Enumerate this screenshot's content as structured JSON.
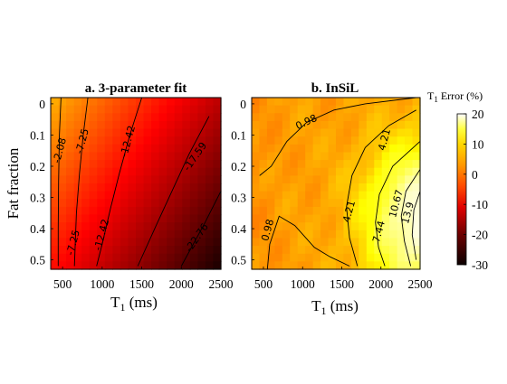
{
  "chart_data": [
    {
      "type": "heatmap",
      "title": "a. 3-parameter fit",
      "xlabel_main": "T",
      "xlabel_sub": "1",
      "xlabel_unit": " (ms)",
      "ylabel": "Fat fraction",
      "xticks": [
        500,
        1000,
        1500,
        2000,
        2500
      ],
      "yticks": [
        0,
        0.1,
        0.2,
        0.3,
        0.4,
        0.5
      ],
      "ytick_labels": [
        "0",
        "0.1",
        "0.2",
        "0.3",
        "0.4",
        "0.5"
      ],
      "xlim": [
        350,
        2500
      ],
      "ylim": [
        0.53,
        -0.02
      ],
      "y_direction": "reversed",
      "value_model": {
        "x_range": [
          400,
          2500
        ],
        "y_range": [
          0,
          0.5
        ],
        "v_at_x_min": 1,
        "slope_x": -17.5,
        "y_effect": 11
      },
      "contours": [
        {
          "level": -2.08,
          "label": "-2.08",
          "points": [
            [
              480,
              -0.02
            ],
            [
              460,
              0.1
            ],
            [
              450,
              0.25
            ],
            [
              445,
              0.4
            ],
            [
              445,
              0.52
            ]
          ],
          "label_at": [
            470,
            0.15
          ]
        },
        {
          "level": -7.25,
          "label": "-7.25",
          "points": [
            [
              820,
              -0.02
            ],
            [
              760,
              0.1
            ],
            [
              715,
              0.22
            ],
            [
              675,
              0.35
            ],
            [
              650,
              0.52
            ]
          ],
          "label_at": [
            755,
            0.12
          ]
        },
        {
          "level": -7.25,
          "label": "-7.25",
          "points": [],
          "label_at": [
            640,
            0.445
          ]
        },
        {
          "level": -12.42,
          "label": "-12.42",
          "points": [
            [
              1500,
              -0.02
            ],
            [
              1350,
              0.1
            ],
            [
              1220,
              0.22
            ],
            [
              1110,
              0.33
            ],
            [
              1000,
              0.45
            ],
            [
              930,
              0.52
            ]
          ],
          "label_at": [
            1330,
            0.12
          ]
        },
        {
          "level": -12.42,
          "label": "-12.42",
          "points": [],
          "label_at": [
            1000,
            0.42
          ]
        },
        {
          "level": -17.59,
          "label": "-17.59",
          "points": [
            [
              2350,
              0.04
            ],
            [
              2100,
              0.16
            ],
            [
              1900,
              0.27
            ],
            [
              1700,
              0.38
            ],
            [
              1450,
              0.52
            ]
          ],
          "label_at": [
            2180,
            0.17
          ]
        },
        {
          "level": -22.76,
          "label": "-22.76",
          "points": [
            [
              2500,
              0.28
            ],
            [
              2300,
              0.38
            ],
            [
              2150,
              0.45
            ],
            [
              2000,
              0.52
            ]
          ],
          "label_at": [
            2200,
            0.43
          ]
        }
      ]
    },
    {
      "type": "heatmap",
      "title": "b. InSiL",
      "xlabel_main": "T",
      "xlabel_sub": "1",
      "xlabel_unit": " (ms)",
      "xticks": [
        500,
        1000,
        1500,
        2000,
        2500
      ],
      "yticks": [
        0,
        0.1,
        0.2,
        0.3,
        0.4,
        0.5
      ],
      "ytick_labels": [
        "0",
        "0.1",
        "0.2",
        "0.3",
        "0.4",
        "0.5"
      ],
      "xlim": [
        350,
        2500
      ],
      "ylim": [
        0.53,
        -0.02
      ],
      "y_direction": "reversed",
      "contours": [
        {
          "level": 0.98,
          "label": "0.98",
          "points": [
            [
              2450,
              -0.02
            ],
            [
              1800,
              0.0
            ],
            [
              1400,
              0.02
            ],
            [
              1050,
              0.06
            ],
            [
              800,
              0.12
            ],
            [
              600,
              0.2
            ],
            [
              450,
              0.23
            ]
          ],
          "label_at": [
            1050,
            0.06
          ]
        },
        {
          "level": 0.98,
          "label": "0.98",
          "points": [
            [
              550,
              0.53
            ],
            [
              580,
              0.45
            ],
            [
              700,
              0.36
            ],
            [
              900,
              0.39
            ],
            [
              1150,
              0.46
            ],
            [
              1350,
              0.49
            ],
            [
              1600,
              0.52
            ]
          ],
          "label_at": [
            560,
            0.405
          ]
        },
        {
          "level": 4.21,
          "label": "4.21",
          "points": [
            [
              2450,
              0.02
            ],
            [
              2100,
              0.07
            ],
            [
              1800,
              0.14
            ],
            [
              1630,
              0.23
            ],
            [
              1560,
              0.33
            ],
            [
              1600,
              0.43
            ],
            [
              1700,
              0.52
            ]
          ],
          "label_at": [
            1600,
            0.345
          ]
        },
        {
          "level": 4.21,
          "label": "4.21",
          "points": [],
          "label_at": [
            2050,
            0.115
          ]
        },
        {
          "level": 7.44,
          "label": "7.44",
          "points": [
            [
              2500,
              0.12
            ],
            [
              2150,
              0.2
            ],
            [
              1980,
              0.29
            ],
            [
              1930,
              0.38
            ],
            [
              1970,
              0.46
            ],
            [
              2050,
              0.52
            ]
          ],
          "label_at": [
            1980,
            0.41
          ]
        },
        {
          "level": 10.67,
          "label": "10.67",
          "points": [
            [
              2500,
              0.21
            ],
            [
              2320,
              0.28
            ],
            [
              2260,
              0.36
            ],
            [
              2300,
              0.44
            ],
            [
              2380,
              0.52
            ]
          ],
          "label_at": [
            2200,
            0.32
          ]
        },
        {
          "level": 13.9,
          "label": "13.9",
          "points": [
            [
              2500,
              0.28
            ],
            [
              2420,
              0.34
            ],
            [
              2400,
              0.42
            ],
            [
              2450,
              0.5
            ]
          ],
          "label_at": [
            2350,
            0.35
          ]
        }
      ]
    }
  ],
  "colorbar": {
    "title_main": "T",
    "title_sub": "1",
    "title_unit": " Error (%)",
    "ticks": [
      20,
      10,
      0,
      -10,
      -20,
      -30
    ],
    "tick_labels": [
      "20",
      "10",
      "0",
      "-10",
      "-20",
      "-30"
    ],
    "range": [
      -30,
      20
    ],
    "colormap": "hot"
  }
}
